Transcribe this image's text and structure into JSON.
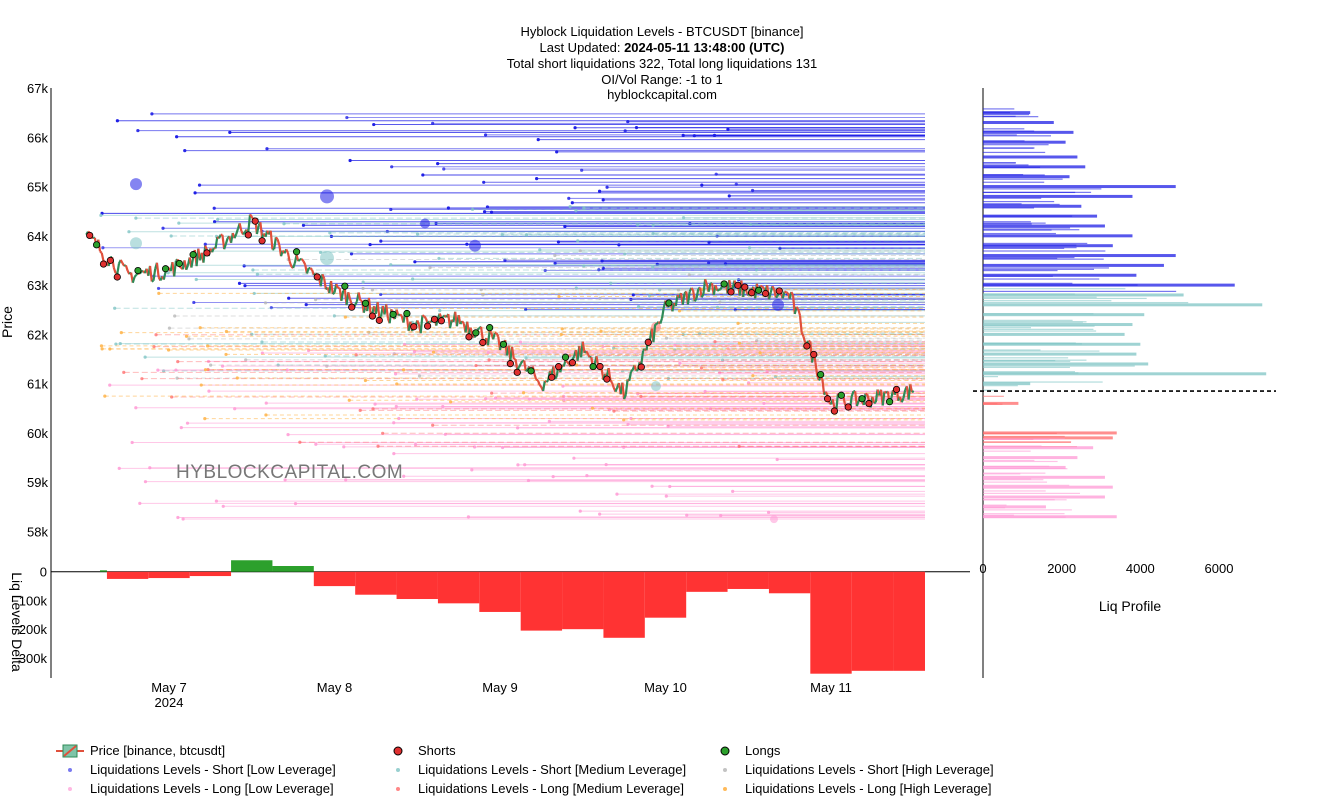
{
  "title": {
    "line1": "Hyblock Liquidation Levels - BTCUSDT [binance]",
    "line2_prefix": "Last Updated: ",
    "line2_value": "2024-05-11 13:48:00 (UTC)",
    "line3": "Total short liquidations 322, Total long liquidations 131",
    "line4": "OI/Vol Range: -1 to 1",
    "line5": "hyblockcapital.com"
  },
  "watermark": "HYBLOCKCAPITAL.COM",
  "colors": {
    "short_low": "#1f1fe6",
    "short_medium": "#7fc4c4",
    "short_high": "#b4b4b4",
    "long_low": "#ff9ad5",
    "long_medium": "#ff6a6a",
    "long_high": "#ffb347",
    "price_up": "#2e8b57",
    "price_down": "#e0503c",
    "delta_neg": "#ff3333",
    "delta_pos": "#2ca02c",
    "shorts_marker": "#e03030",
    "longs_marker": "#2ca02c"
  },
  "chart_data": [
    {
      "type": "line",
      "name": "price",
      "ylabel": "Price",
      "ylim": [
        57300,
        67000
      ],
      "ytick_labels": [
        "58k",
        "59k",
        "60k",
        "61k",
        "62k",
        "63k",
        "64k",
        "65k",
        "66k",
        "67k"
      ],
      "ytick_values": [
        58000,
        59000,
        60000,
        61000,
        62000,
        63000,
        64000,
        65000,
        66000,
        67000
      ],
      "x_labels": [
        "May 7",
        "May 8",
        "May 9",
        "May 10",
        "May 11"
      ],
      "x_sub_label": "2024",
      "x": [
        "May 6 12:00",
        "May 6 18:00",
        "May 7 00:00",
        "May 7 06:00",
        "May 7 12:00",
        "May 7 18:00",
        "May 8 00:00",
        "May 8 06:00",
        "May 8 12:00",
        "May 8 18:00",
        "May 9 00:00",
        "May 9 06:00",
        "May 9 12:00",
        "May 9 18:00",
        "May 10 00:00",
        "May 10 06:00",
        "May 10 12:00",
        "May 10 18:00",
        "May 11 00:00",
        "May 11 06:00",
        "May 11 12:00"
      ],
      "series": [
        {
          "name": "Price [binance, btcusdt]",
          "values": [
            64000,
            63200,
            63300,
            63700,
            64300,
            63500,
            62900,
            62500,
            62200,
            62300,
            61800,
            61000,
            61700,
            60800,
            62500,
            63000,
            62900,
            62800,
            60600,
            60700,
            60850
          ]
        }
      ]
    },
    {
      "type": "bar",
      "name": "liq_levels_delta",
      "ylabel": "Liq Levels Delta",
      "ylim": [
        -370000,
        20000
      ],
      "ytick_labels": [
        "0",
        "−100k",
        "−200k",
        "−300k"
      ],
      "ytick_values": [
        0,
        -100000,
        -200000,
        -300000
      ],
      "x": [
        "May 6 12:00",
        "May 6 18:00",
        "May 7 00:00",
        "May 7 06:00",
        "May 7 12:00",
        "May 7 18:00",
        "May 8 00:00",
        "May 8 06:00",
        "May 8 12:00",
        "May 8 18:00",
        "May 9 00:00",
        "May 9 06:00",
        "May 9 12:00",
        "May 9 18:00",
        "May 10 00:00",
        "May 10 06:00",
        "May 10 12:00",
        "May 10 18:00",
        "May 11 00:00",
        "May 11 06:00",
        "May 11 12:00"
      ],
      "values": [
        5000,
        -25000,
        -22000,
        -15000,
        40000,
        20000,
        -50000,
        -80000,
        -95000,
        -110000,
        -140000,
        -205000,
        -200000,
        -230000,
        -160000,
        -70000,
        -60000,
        -75000,
        -355000,
        -345000,
        -345000
      ]
    },
    {
      "type": "bar",
      "name": "liq_profile",
      "orientation": "horizontal",
      "xlabel": "Liq Profile",
      "xlim": [
        0,
        7400
      ],
      "xtick_labels": [
        "0",
        "2000",
        "4000",
        "6000"
      ],
      "xtick_values": [
        0,
        2000,
        4000,
        6000
      ],
      "current_price": 60850,
      "categories": [
        66500,
        66300,
        66100,
        65900,
        65600,
        65400,
        65200,
        65000,
        64800,
        64600,
        64400,
        64200,
        64000,
        63800,
        63600,
        63400,
        63200,
        63000,
        62800,
        62600,
        62400,
        62200,
        62000,
        61800,
        61600,
        61400,
        61200,
        61000,
        60600,
        60000,
        59900,
        59700,
        59500,
        59300,
        59100,
        58900,
        58700,
        58500,
        58300
      ],
      "values": [
        1200,
        1800,
        2300,
        2100,
        2400,
        2600,
        2200,
        4900,
        3800,
        2500,
        2900,
        3100,
        3800,
        3300,
        4900,
        4600,
        3900,
        6400,
        5100,
        7100,
        4100,
        3800,
        3600,
        4000,
        3900,
        4200,
        7200,
        1200,
        900,
        3400,
        3300,
        2800,
        2400,
        2100,
        3100,
        3300,
        3100,
        1600,
        3400
      ]
    }
  ],
  "delta_axis_label": "Liq Levels Delta",
  "legend": {
    "price": "Price [binance, btcusdt]",
    "shorts": "Shorts",
    "longs": "Longs",
    "short_low": "Liquidations Levels - Short [Low Leverage]",
    "short_medium": "Liquidations Levels - Short [Medium Leverage]",
    "short_high": "Liquidations Levels - Short [High Leverage]",
    "long_low": "Liquidations Levels - Long [Low Leverage]",
    "long_medium": "Liquidations Levels - Long [Medium Leverage]",
    "long_high": "Liquidations Levels - Long [High Leverage]"
  }
}
